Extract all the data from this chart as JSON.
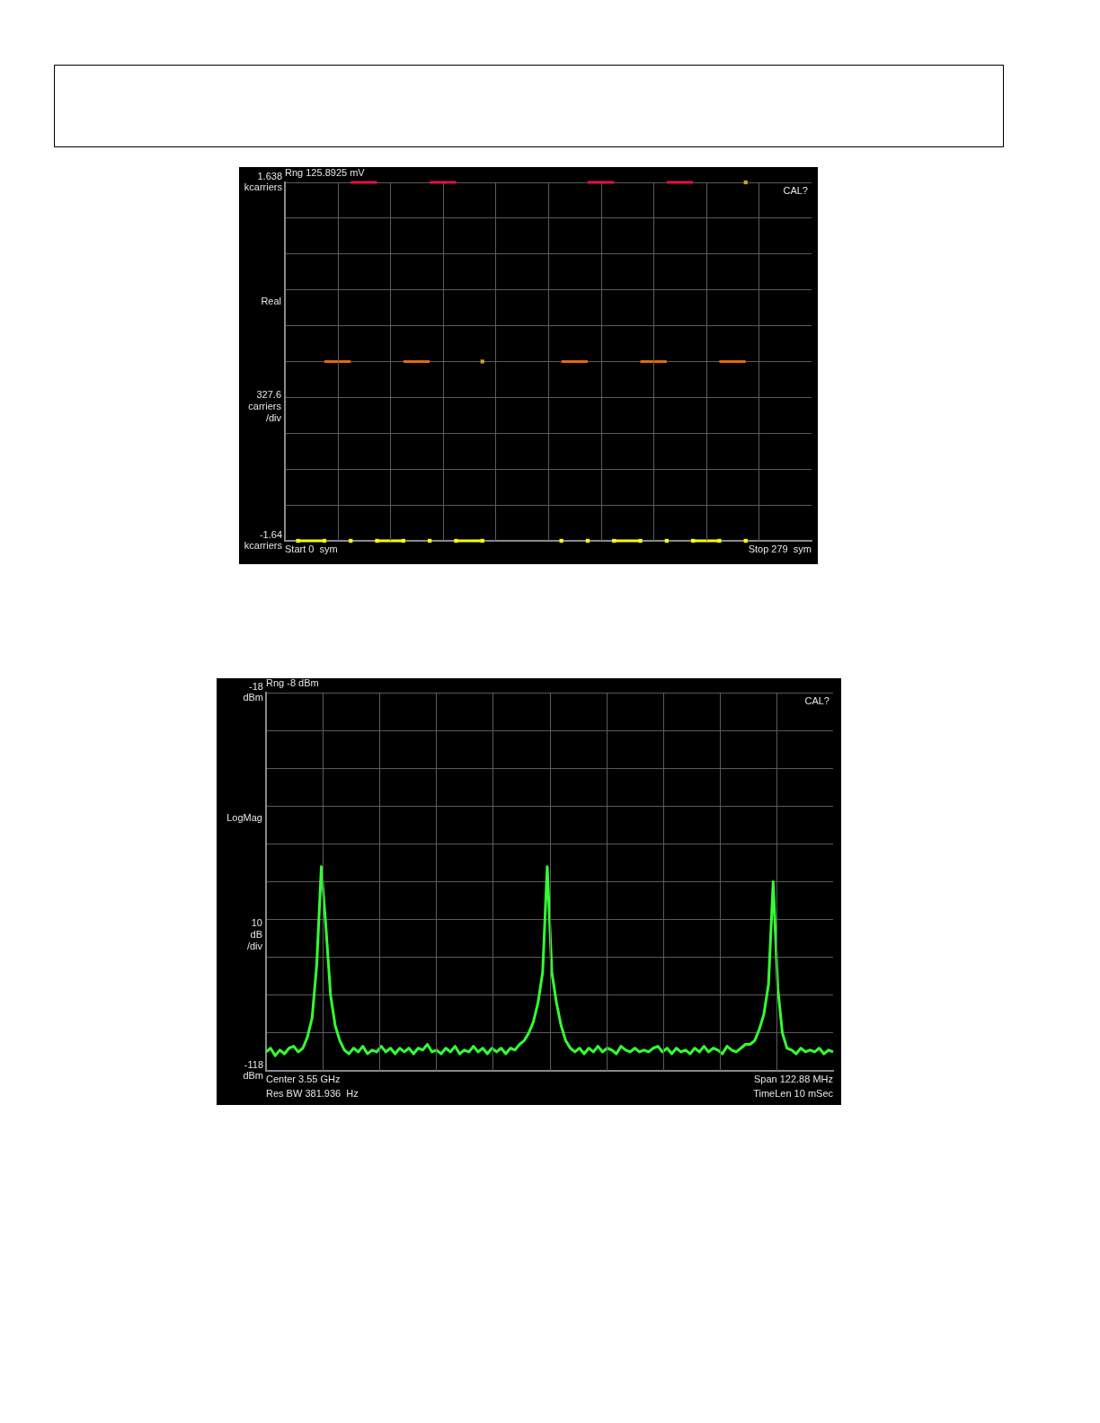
{
  "chart_data": [
    {
      "type": "line",
      "ylabel": "Real\n\n\n\n\n\n\n\n327.6\ncarriers\n/div",
      "annotations": [
        "Rng 125.8925 mV",
        "CAL?",
        "Start 0  sym",
        "Stop 279  sym"
      ],
      "categories": [
        null,
        null,
        null,
        null,
        null,
        null,
        null,
        null,
        null,
        null,
        null,
        null,
        null,
        null,
        null,
        null,
        null,
        null,
        null,
        null
      ],
      "ylim": [
        -1.64,
        1.638
      ],
      "yticks": [
        {
          "value": -1.64,
          "label": "-1.64\nkcarriers"
        },
        {
          "value": -1.3122,
          "label": null
        },
        {
          "value": -0.9844,
          "label": null
        },
        {
          "value": -0.6566,
          "label": null
        },
        {
          "value": -0.3288,
          "label": null
        },
        {
          "value": -0.001,
          "label": null
        },
        {
          "value": 0.3268,
          "label": null
        },
        {
          "value": 0.6546,
          "label": null
        },
        {
          "value": 0.9824,
          "label": null
        },
        {
          "value": 1.3102,
          "label": null
        },
        {
          "value": 1.638,
          "label": "1.638\nkcarriers"
        }
      ],
      "grid": true,
      "legend": false,
      "series": [
        {
          "type": "scatter",
          "color": "#ffff00",
          "marker": "square",
          "values": [
            -1.64,
            -1.64,
            -1.64,
            -1.64,
            -1.64,
            -1.64,
            -1.64,
            -1.64,
            null,
            null,
            -1.64,
            -1.64,
            -1.64,
            -1.64,
            -1.64,
            -1.64,
            -1.64,
            -1.64,
            null,
            null
          ]
        },
        {
          "color": "#ffff00",
          "marker": "none",
          "values": [
            -1.64,
            -1.64,
            null,
            -1.64,
            -1.64,
            null,
            -1.64,
            -1.64,
            null,
            null,
            null,
            null,
            -1.64,
            -1.64,
            null,
            -1.64,
            -1.64,
            null,
            null,
            null
          ]
        },
        {
          "color": "#e06a10",
          "marker": "none",
          "values": [
            null,
            0,
            0,
            null,
            0,
            0,
            null,
            null,
            null,
            null,
            0,
            0,
            null,
            0,
            0,
            null,
            0,
            0,
            null,
            null
          ]
        },
        {
          "color": "#e0104a",
          "marker": "none",
          "values": [
            null,
            null,
            1.638,
            1.638,
            null,
            1.638,
            1.638,
            null,
            null,
            null,
            null,
            1.638,
            1.638,
            null,
            1.638,
            1.638,
            null,
            null,
            null,
            null
          ]
        },
        {
          "type": "scatter",
          "color": "#d4a017",
          "marker": "square",
          "values": [
            null,
            null,
            null,
            null,
            null,
            null,
            null,
            0,
            null,
            null,
            null,
            null,
            null,
            null,
            null,
            null,
            null,
            1.638,
            null,
            null
          ]
        }
      ]
    },
    {
      "type": "line",
      "ylabel": "LogMag\n\n\n\n\n\n\n\n\n10\ndB\n/div",
      "annotations": [
        "Rng -8 dBm",
        "CAL?",
        "Center 3.55 GHz",
        "Res BW 381.936  Hz",
        "Span 122.88 MHz",
        "TimeLen 10 mSec"
      ],
      "categories": [
        null,
        null,
        null,
        null,
        null,
        null,
        null,
        null,
        null,
        null,
        null,
        null,
        null,
        null,
        null,
        null,
        null,
        null,
        null,
        null,
        null,
        null,
        null,
        null,
        null,
        null,
        null,
        null,
        null,
        null,
        null,
        null,
        null,
        null,
        null,
        null,
        null,
        null,
        null,
        null,
        null,
        null,
        null,
        null,
        null,
        null,
        null,
        null,
        null,
        null,
        null,
        null,
        null,
        null,
        null,
        null,
        null,
        null,
        null,
        null,
        null,
        null,
        null,
        null,
        null,
        null,
        null,
        null,
        null,
        null,
        null,
        null,
        null,
        null,
        null,
        null,
        null,
        null,
        null,
        null,
        null,
        null,
        null,
        null,
        null,
        null,
        null,
        null,
        null,
        null,
        null,
        null,
        null,
        null,
        null,
        null,
        null,
        null,
        null,
        null,
        null,
        null,
        null,
        null,
        null,
        null,
        null,
        null,
        null,
        null,
        null,
        null,
        null,
        null,
        null,
        null,
        null,
        null,
        null,
        null,
        null,
        null,
        null,
        null
      ],
      "ylim": [
        -118,
        -18
      ],
      "yticks": [
        {
          "value": -118,
          "label": "-118\ndBm"
        },
        {
          "value": -108,
          "label": null
        },
        {
          "value": -98,
          "label": null
        },
        {
          "value": -88,
          "label": null
        },
        {
          "value": -78,
          "label": null
        },
        {
          "value": -68,
          "label": null
        },
        {
          "value": -58,
          "label": null
        },
        {
          "value": -48,
          "label": null
        },
        {
          "value": -38,
          "label": null
        },
        {
          "value": -28,
          "label": null
        },
        {
          "value": -18,
          "label": "-18\ndBm"
        }
      ],
      "grid": true,
      "legend": false,
      "series": [
        {
          "color": "#33ff33",
          "values": [
            -113,
            -112,
            -114,
            -112.5,
            -113.5,
            -112,
            -111.5,
            -113,
            -112,
            -109,
            -104,
            -90,
            -64,
            -80,
            -98,
            -106,
            -110,
            -112.5,
            -113.5,
            -112,
            -113,
            -111.5,
            -113.5,
            -112.5,
            -113,
            -111.5,
            -113,
            -112,
            -113.5,
            -112,
            -113,
            -112,
            -113.5,
            -112,
            -112.5,
            -111,
            -113,
            -112.5,
            -113.5,
            -112,
            -113,
            -111.5,
            -113.5,
            -112.5,
            -113,
            -111.5,
            -113,
            -112,
            -113.5,
            -112,
            -113,
            -112,
            -113.5,
            -112,
            -112.5,
            -111,
            -110,
            -108,
            -105,
            -100,
            -92,
            -64,
            -92,
            -100,
            -106,
            -110,
            -112,
            -113,
            -112,
            -113.5,
            -112,
            -113,
            -111.5,
            -113,
            -112,
            -112.5,
            -113.5,
            -111.5,
            -112.5,
            -113,
            -112,
            -113,
            -112.5,
            -113,
            -112,
            -111.5,
            -113,
            -112,
            -113.5,
            -112,
            -113,
            -112.5,
            -113.5,
            -112,
            -113,
            -111.5,
            -113,
            -112,
            -112.5,
            -113.5,
            -111.5,
            -112.5,
            -113,
            -112,
            -111,
            -111,
            -110,
            -107,
            -103,
            -95,
            -68,
            -96,
            -108,
            -112,
            -112.5,
            -113.5,
            -112,
            -113,
            -112.5,
            -113,
            -112,
            -113.5,
            -112.5,
            -113
          ]
        }
      ]
    }
  ]
}
